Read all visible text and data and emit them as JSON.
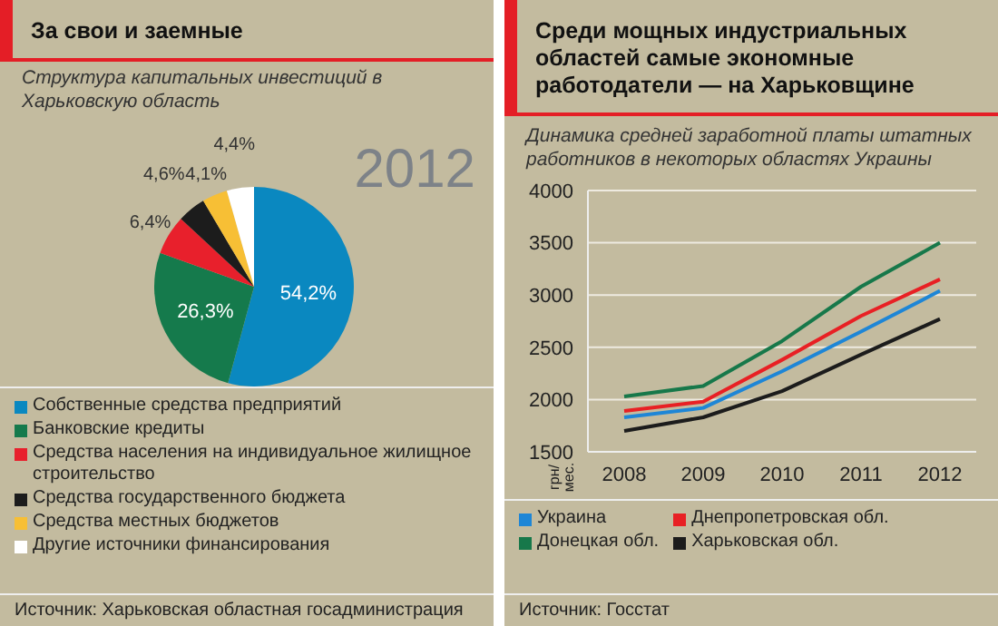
{
  "chart_data": [
    {
      "type": "pie",
      "title": "За свои и заемные",
      "subtitle": "Структура капитальных инвестиций в Харьковскую область",
      "categories": [
        "Собственные средства предприятий",
        "Банковские кредиты",
        "Средства населения на индивидуальное жилищное строительство",
        "Средства государственного бюджета",
        "Средства местных бюджетов",
        "Другие источники финансирования"
      ],
      "values": [
        54.2,
        26.3,
        6.4,
        4.6,
        4.1,
        4.4
      ],
      "value_labels": [
        "54,2%",
        "26,3%",
        "6,4%",
        "4,6%",
        "4,1%",
        "4,4%"
      ],
      "colors": [
        "#0a88c0",
        "#157a4c",
        "#e8202c",
        "#1c1c1c",
        "#f7bf35",
        "#ffffff"
      ],
      "legend": "bottom",
      "annotations": [
        "2012",
        "Источник: Харьковская областная госадминистрация"
      ]
    },
    {
      "type": "line",
      "title": "Среди мощных индустриальных областей самые экономные работодатели — на Харьковщине",
      "subtitle": "Динамика средней заработной платы штатных работников в некоторых областях Украины",
      "ylabel": "грн/ мес.",
      "categories": [
        "2008",
        "2009",
        "2010",
        "2011",
        "2012"
      ],
      "series": [
        {
          "name": "Украина",
          "color": "#1e86d6",
          "values": [
            1830,
            1920,
            2270,
            2650,
            3040
          ]
        },
        {
          "name": "Днепропетровская обл.",
          "color": "#e82024",
          "values": [
            1890,
            1980,
            2380,
            2800,
            3150
          ]
        },
        {
          "name": "Донецкая обл.",
          "color": "#17784a",
          "values": [
            2030,
            2130,
            2560,
            3080,
            3500
          ]
        },
        {
          "name": "Харьковская обл.",
          "color": "#1c1c1c",
          "values": [
            1700,
            1830,
            2080,
            2430,
            2770
          ]
        }
      ],
      "ylim": [
        1500,
        4000
      ],
      "yticks": [
        1500,
        2000,
        2500,
        3000,
        3500,
        4000
      ],
      "grid": "y",
      "marker": "none",
      "line_style": "solid",
      "legend": "bottom",
      "annotations": [
        "Источник: Госстат"
      ]
    }
  ]
}
